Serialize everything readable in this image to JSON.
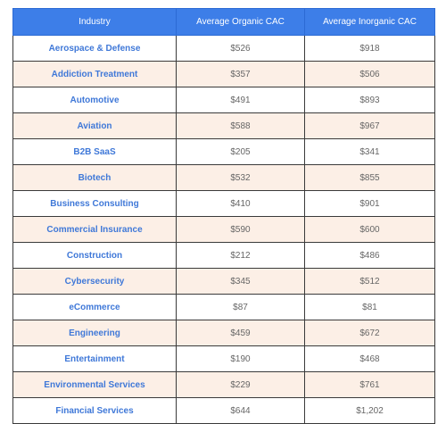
{
  "table": {
    "headers": [
      "Industry",
      "Average Organic CAC",
      "Average Inorganic CAC"
    ],
    "rows": [
      [
        "Aerospace & Defense",
        "$526",
        "$918"
      ],
      [
        "Addiction Treatment",
        "$357",
        "$506"
      ],
      [
        "Automotive",
        "$491",
        "$893"
      ],
      [
        "Aviation",
        "$588",
        "$967"
      ],
      [
        "B2B SaaS",
        "$205",
        "$341"
      ],
      [
        "Biotech",
        "$532",
        "$855"
      ],
      [
        "Business Consulting",
        "$410",
        "$901"
      ],
      [
        "Commercial Insurance",
        "$590",
        "$600"
      ],
      [
        "Construction",
        "$212",
        "$486"
      ],
      [
        "Cybersecurity",
        "$345",
        "$512"
      ],
      [
        "eCommerce",
        "$87",
        "$81"
      ],
      [
        "Engineering",
        "$459",
        "$672"
      ],
      [
        "Entertainment",
        "$190",
        "$468"
      ],
      [
        "Environmental Services",
        "$229",
        "$761"
      ],
      [
        "Financial Services",
        "$644",
        "$1,202"
      ]
    ]
  },
  "colors": {
    "header_bg": "#3d7ee8",
    "industry_text": "#3f78d8",
    "stripe_bg": "#fcefe6"
  }
}
